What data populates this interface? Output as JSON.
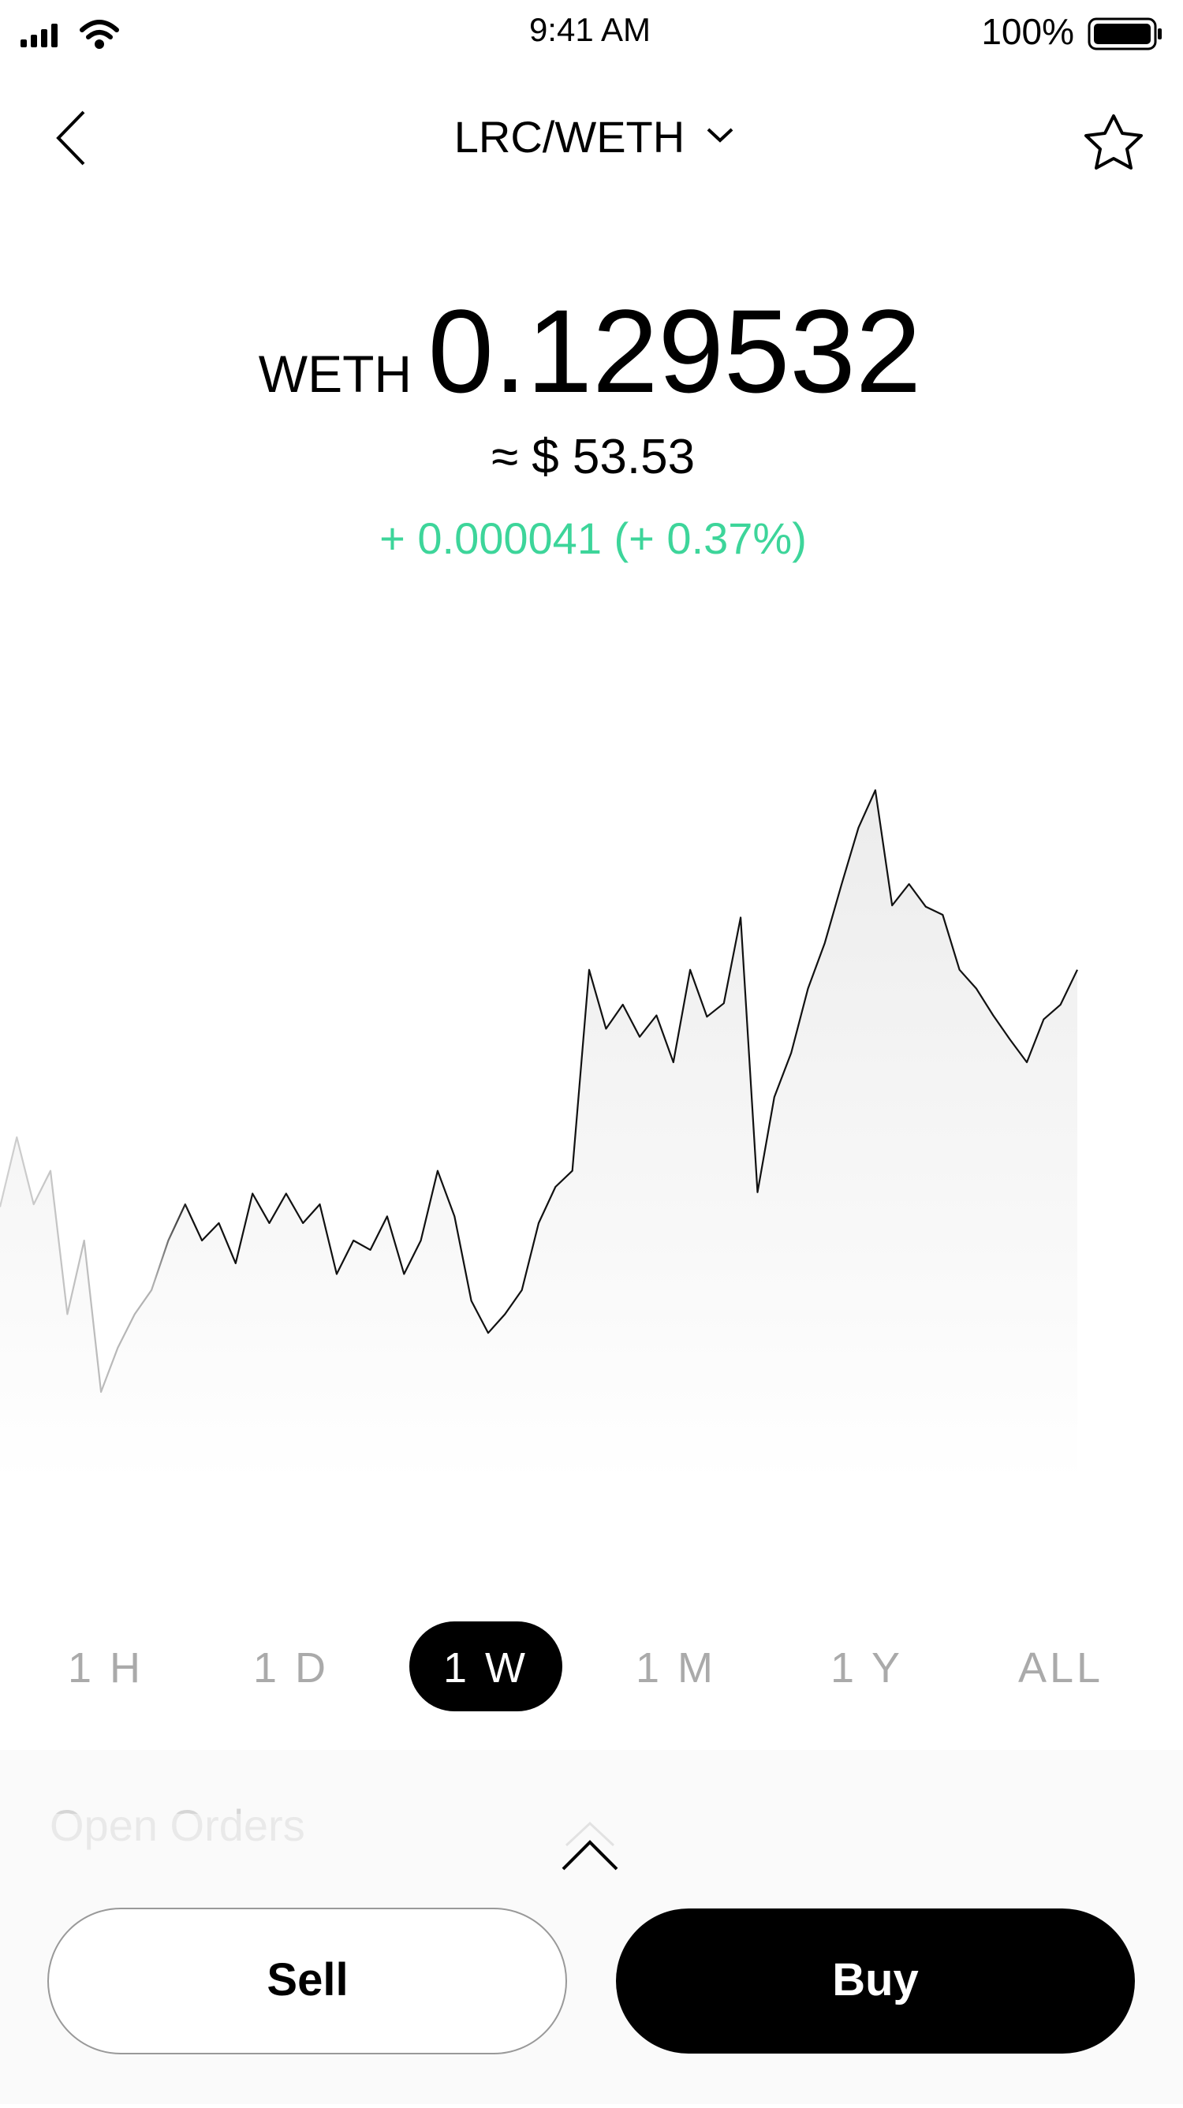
{
  "status": {
    "time": "9:41 AM",
    "battery": "100%"
  },
  "header": {
    "pair": "LRC/WETH"
  },
  "price": {
    "currency": "WETH",
    "value": "0.129532",
    "fiat": "≈ $ 53.53",
    "change": "+ 0.000041 (+ 0.37%)"
  },
  "chart": {
    "values": [
      200,
      252,
      202,
      227,
      120,
      175,
      62,
      95,
      120,
      138,
      175,
      202,
      175,
      188,
      158,
      210,
      188,
      210,
      188,
      202,
      150,
      175,
      168,
      193,
      150,
      175,
      227,
      193,
      130,
      106,
      120,
      138,
      188,
      215,
      227,
      377,
      333,
      351,
      327,
      343,
      308,
      377,
      342,
      352,
      416,
      211,
      282,
      315,
      363,
      397,
      441,
      483,
      511,
      425,
      441,
      424,
      418,
      377,
      363,
      343,
      325,
      308,
      340,
      351,
      377
    ]
  },
  "tabs": {
    "items": [
      "1 H",
      "1 D",
      "1 W",
      "1 M",
      "1 Y",
      "ALL"
    ],
    "active": 2
  },
  "panel": {
    "title": "Open Orders"
  },
  "buttons": {
    "sell": "Sell",
    "buy": "Buy"
  }
}
